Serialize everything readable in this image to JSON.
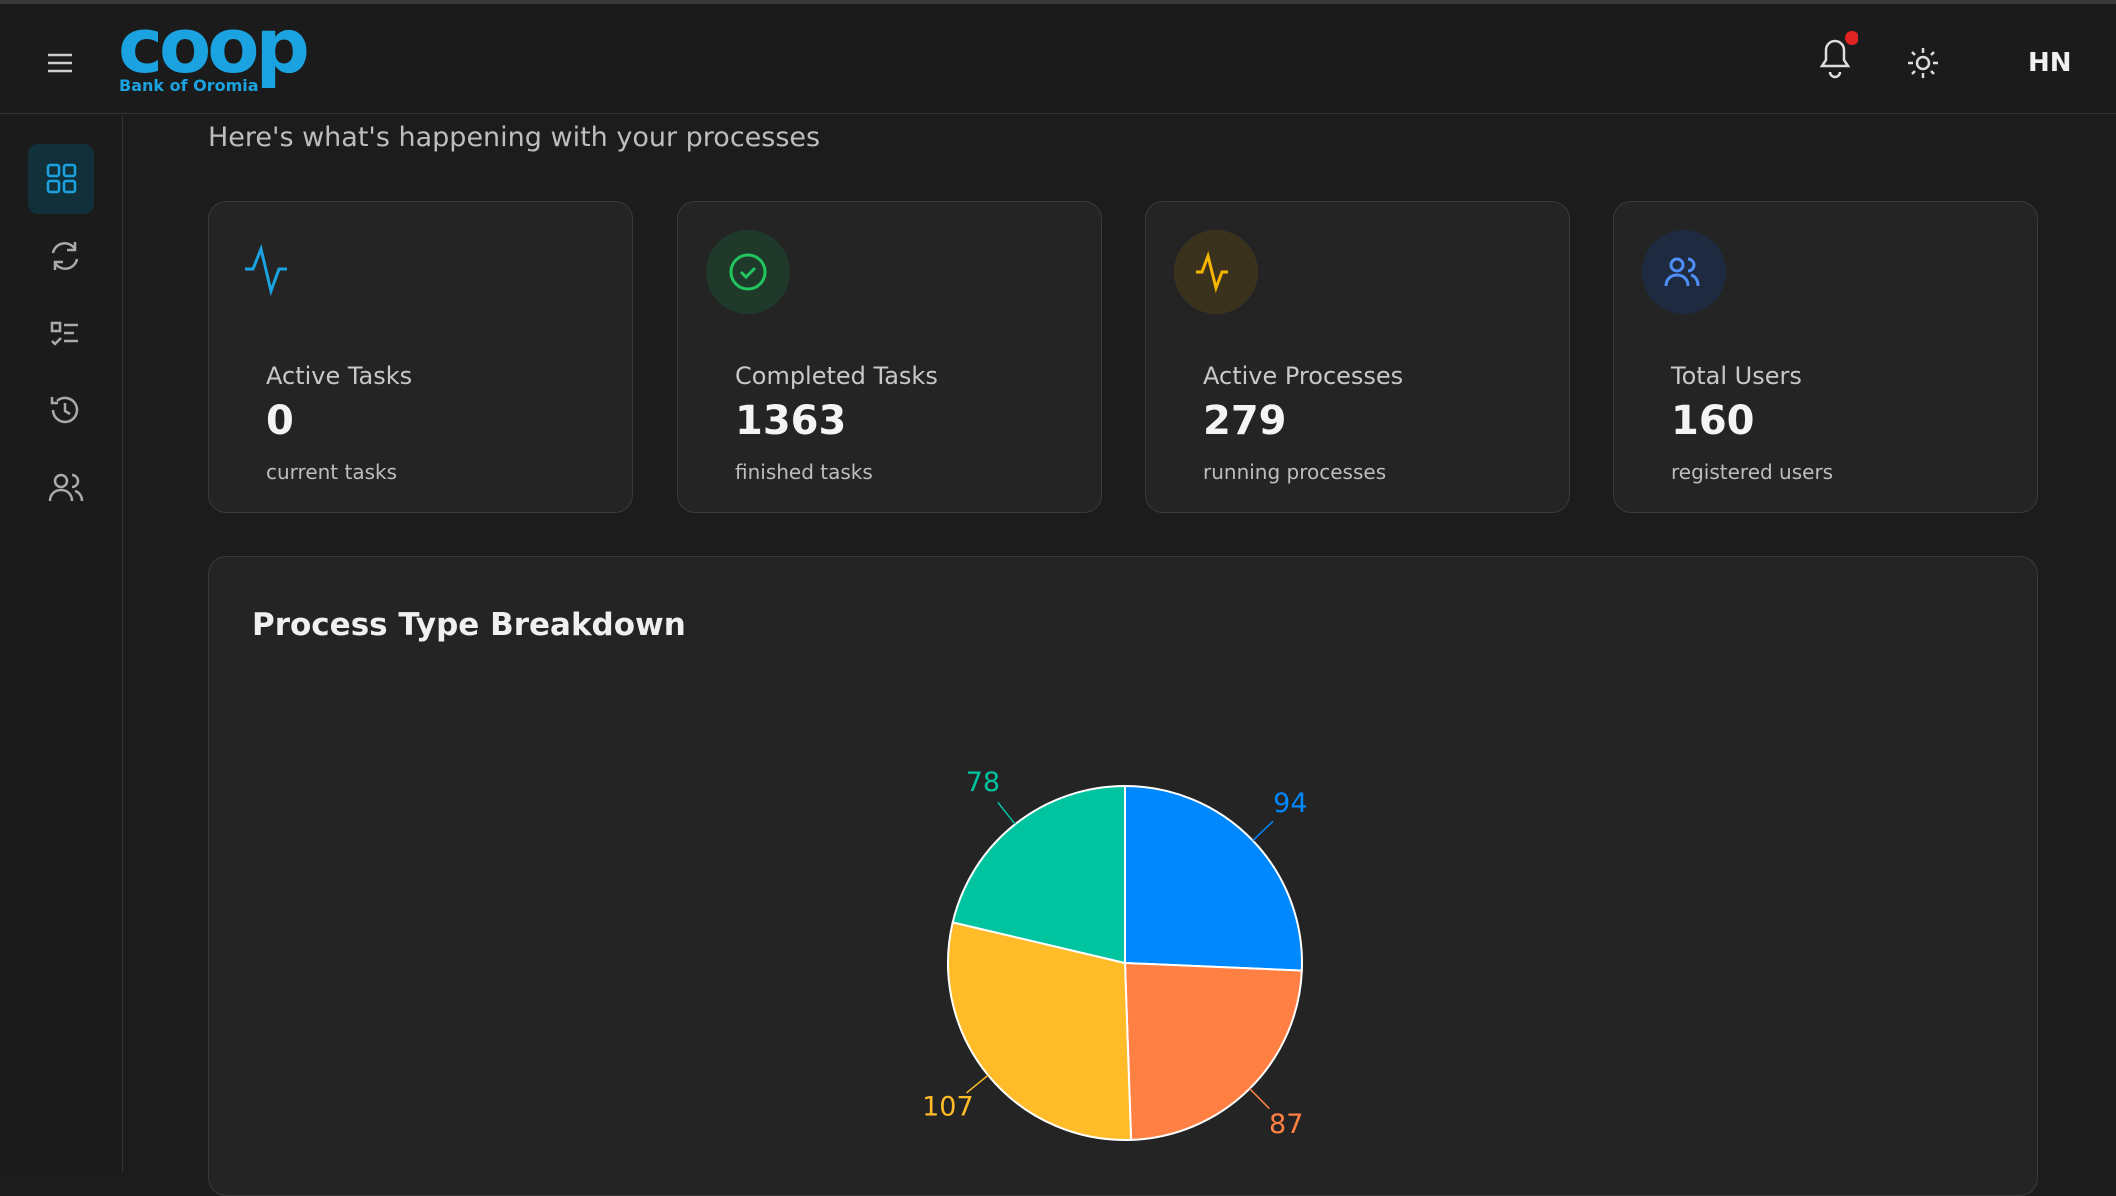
{
  "header": {
    "logo": "coop",
    "logo_subtitle": "Bank of Oromia",
    "user_initials": "HN"
  },
  "subtitle": "Here's what's happening with your processes",
  "cards": [
    {
      "label": "Active Tasks",
      "value": "0",
      "caption": "current tasks"
    },
    {
      "label": "Completed Tasks",
      "value": "1363",
      "caption": "finished tasks"
    },
    {
      "label": "Active Processes",
      "value": "279",
      "caption": "running processes"
    },
    {
      "label": "Total Users",
      "value": "160",
      "caption": "registered users"
    }
  ],
  "chart_data": {
    "type": "pie",
    "title": "Process Type Breakdown",
    "values": [
      94,
      87,
      107,
      78
    ],
    "colors": [
      "#0088fe",
      "#ff8042",
      "#ffbb28",
      "#00c49f"
    ]
  }
}
